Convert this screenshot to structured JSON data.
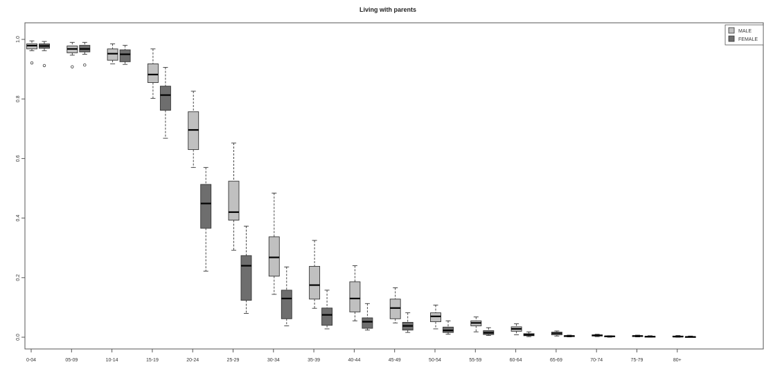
{
  "chart_data": {
    "type": "boxplot",
    "title": "Living with parents",
    "xlabel": "",
    "ylabel": "",
    "ylim": [
      0.0,
      1.0
    ],
    "yticks": [
      "0.0",
      "0.2",
      "0.4",
      "0.6",
      "0.8",
      "1.0"
    ],
    "categories": [
      "0-04",
      "05-09",
      "10-14",
      "15-19",
      "20-24",
      "25-29",
      "30-34",
      "35-39",
      "40-44",
      "45-49",
      "50-54",
      "55-59",
      "60-64",
      "65-69",
      "70-74",
      "75-79",
      "80+"
    ],
    "legend": {
      "position": "top-right",
      "entries": [
        "MALE",
        "FEMALE"
      ]
    },
    "colors": {
      "MALE": "#c0c0c0",
      "FEMALE": "#6e6e6e"
    },
    "series": [
      {
        "name": "MALE",
        "boxes": [
          {
            "min": 0.962,
            "q1": 0.968,
            "median": 0.979,
            "q3": 0.985,
            "max": 0.995,
            "outliers": [
              0.921
            ]
          },
          {
            "min": 0.947,
            "q1": 0.955,
            "median": 0.968,
            "q3": 0.978,
            "max": 0.99,
            "outliers": [
              0.908
            ]
          },
          {
            "min": 0.918,
            "q1": 0.93,
            "median": 0.952,
            "q3": 0.968,
            "max": 0.985,
            "outliers": []
          },
          {
            "min": 0.802,
            "q1": 0.855,
            "median": 0.882,
            "q3": 0.918,
            "max": 0.968,
            "outliers": []
          },
          {
            "min": 0.57,
            "q1": 0.63,
            "median": 0.696,
            "q3": 0.757,
            "max": 0.826,
            "outliers": []
          },
          {
            "min": 0.292,
            "q1": 0.393,
            "median": 0.42,
            "q3": 0.524,
            "max": 0.652,
            "outliers": []
          },
          {
            "min": 0.144,
            "q1": 0.205,
            "median": 0.268,
            "q3": 0.337,
            "max": 0.484,
            "outliers": []
          },
          {
            "min": 0.097,
            "q1": 0.128,
            "median": 0.175,
            "q3": 0.238,
            "max": 0.325,
            "outliers": []
          },
          {
            "min": 0.055,
            "q1": 0.085,
            "median": 0.13,
            "q3": 0.186,
            "max": 0.24,
            "outliers": []
          },
          {
            "min": 0.048,
            "q1": 0.062,
            "median": 0.098,
            "q3": 0.128,
            "max": 0.166,
            "outliers": []
          },
          {
            "min": 0.028,
            "q1": 0.052,
            "median": 0.07,
            "q3": 0.082,
            "max": 0.108,
            "outliers": []
          },
          {
            "min": 0.018,
            "q1": 0.038,
            "median": 0.048,
            "q3": 0.055,
            "max": 0.068,
            "outliers": []
          },
          {
            "min": 0.008,
            "q1": 0.02,
            "median": 0.028,
            "q3": 0.035,
            "max": 0.045,
            "outliers": []
          },
          {
            "min": 0.004,
            "q1": 0.008,
            "median": 0.013,
            "q3": 0.017,
            "max": 0.021,
            "outliers": []
          },
          {
            "min": 0.002,
            "q1": 0.004,
            "median": 0.006,
            "q3": 0.008,
            "max": 0.01,
            "outliers": []
          },
          {
            "min": 0.001,
            "q1": 0.003,
            "median": 0.004,
            "q3": 0.005,
            "max": 0.007,
            "outliers": []
          },
          {
            "min": 0.0,
            "q1": 0.001,
            "median": 0.002,
            "q3": 0.004,
            "max": 0.006,
            "outliers": []
          }
        ]
      },
      {
        "name": "FEMALE",
        "boxes": [
          {
            "min": 0.962,
            "q1": 0.97,
            "median": 0.978,
            "q3": 0.985,
            "max": 0.993,
            "outliers": [
              0.912
            ]
          },
          {
            "min": 0.95,
            "q1": 0.958,
            "median": 0.968,
            "q3": 0.98,
            "max": 0.99,
            "outliers": [
              0.914
            ]
          },
          {
            "min": 0.916,
            "q1": 0.925,
            "median": 0.95,
            "q3": 0.965,
            "max": 0.98,
            "outliers": []
          },
          {
            "min": 0.668,
            "q1": 0.762,
            "median": 0.813,
            "q3": 0.843,
            "max": 0.906,
            "outliers": []
          },
          {
            "min": 0.222,
            "q1": 0.366,
            "median": 0.449,
            "q3": 0.513,
            "max": 0.57,
            "outliers": []
          },
          {
            "min": 0.08,
            "q1": 0.124,
            "median": 0.24,
            "q3": 0.274,
            "max": 0.373,
            "outliers": []
          },
          {
            "min": 0.038,
            "q1": 0.062,
            "median": 0.13,
            "q3": 0.158,
            "max": 0.236,
            "outliers": []
          },
          {
            "min": 0.028,
            "q1": 0.04,
            "median": 0.075,
            "q3": 0.098,
            "max": 0.158,
            "outliers": []
          },
          {
            "min": 0.024,
            "q1": 0.03,
            "median": 0.052,
            "q3": 0.065,
            "max": 0.113,
            "outliers": []
          },
          {
            "min": 0.016,
            "q1": 0.024,
            "median": 0.038,
            "q3": 0.05,
            "max": 0.082,
            "outliers": []
          },
          {
            "min": 0.01,
            "q1": 0.016,
            "median": 0.023,
            "q3": 0.034,
            "max": 0.055,
            "outliers": []
          },
          {
            "min": 0.006,
            "q1": 0.009,
            "median": 0.015,
            "q3": 0.022,
            "max": 0.032,
            "outliers": []
          },
          {
            "min": 0.002,
            "q1": 0.005,
            "median": 0.008,
            "q3": 0.012,
            "max": 0.018,
            "outliers": []
          },
          {
            "min": 0.001,
            "q1": 0.002,
            "median": 0.004,
            "q3": 0.005,
            "max": 0.007,
            "outliers": []
          },
          {
            "min": 0.0,
            "q1": 0.002,
            "median": 0.003,
            "q3": 0.004,
            "max": 0.005,
            "outliers": []
          },
          {
            "min": 0.0,
            "q1": 0.001,
            "median": 0.002,
            "q3": 0.003,
            "max": 0.005,
            "outliers": []
          },
          {
            "min": 0.0,
            "q1": 0.0,
            "median": 0.001,
            "q3": 0.002,
            "max": 0.004,
            "outliers": []
          }
        ]
      }
    ]
  }
}
